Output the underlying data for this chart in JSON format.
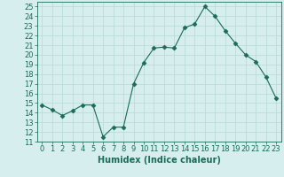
{
  "xlabel": "Humidex (Indice chaleur)",
  "x": [
    0,
    1,
    2,
    3,
    4,
    5,
    6,
    7,
    8,
    9,
    10,
    11,
    12,
    13,
    14,
    15,
    16,
    17,
    18,
    19,
    20,
    21,
    22,
    23
  ],
  "y": [
    14.8,
    14.3,
    13.7,
    14.2,
    14.8,
    14.8,
    11.5,
    12.5,
    12.5,
    17.0,
    19.2,
    20.7,
    20.8,
    20.7,
    22.8,
    23.2,
    25.0,
    24.0,
    22.5,
    21.2,
    20.0,
    19.3,
    17.7,
    15.5
  ],
  "line_color": "#1a6b5a",
  "marker": "D",
  "marker_size": 2.5,
  "bg_color": "#d6eeee",
  "grid_color": "#b8d8d8",
  "ylim": [
    11,
    25.5
  ],
  "xlim": [
    -0.5,
    23.5
  ],
  "yticks": [
    11,
    12,
    13,
    14,
    15,
    16,
    17,
    18,
    19,
    20,
    21,
    22,
    23,
    24,
    25
  ],
  "xticks": [
    0,
    1,
    2,
    3,
    4,
    5,
    6,
    7,
    8,
    9,
    10,
    11,
    12,
    13,
    14,
    15,
    16,
    17,
    18,
    19,
    20,
    21,
    22,
    23
  ],
  "xlabel_fontsize": 7,
  "tick_fontsize": 6
}
